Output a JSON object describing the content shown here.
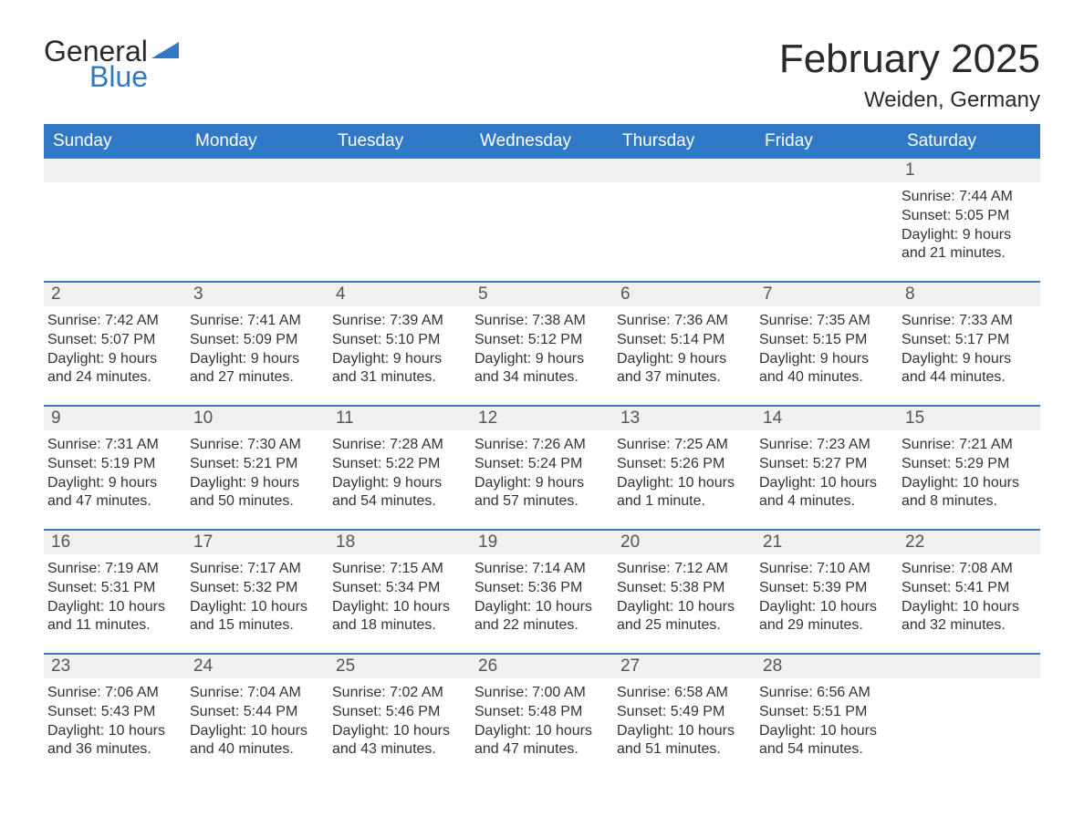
{
  "logo": {
    "word1": "General",
    "word2": "Blue"
  },
  "title": {
    "month": "February 2025",
    "location": "Weiden, Germany"
  },
  "calendar": {
    "weekdays": [
      "Sunday",
      "Monday",
      "Tuesday",
      "Wednesday",
      "Thursday",
      "Friday",
      "Saturday"
    ],
    "colors": {
      "header_bg": "#3178c6",
      "header_text": "#ffffff",
      "daynum_bg": "#f0f0f0",
      "daynum_text": "#555555",
      "body_text": "#333333",
      "row_rule": "#3178c6",
      "page_bg": "#ffffff"
    },
    "weeks": [
      [
        {
          "n": "",
          "empty": true
        },
        {
          "n": "",
          "empty": true
        },
        {
          "n": "",
          "empty": true
        },
        {
          "n": "",
          "empty": true
        },
        {
          "n": "",
          "empty": true
        },
        {
          "n": "",
          "empty": true
        },
        {
          "n": "1",
          "sunrise": "Sunrise: 7:44 AM",
          "sunset": "Sunset: 5:05 PM",
          "daylight": "Daylight: 9 hours and 21 minutes."
        }
      ],
      [
        {
          "n": "2",
          "sunrise": "Sunrise: 7:42 AM",
          "sunset": "Sunset: 5:07 PM",
          "daylight": "Daylight: 9 hours and 24 minutes."
        },
        {
          "n": "3",
          "sunrise": "Sunrise: 7:41 AM",
          "sunset": "Sunset: 5:09 PM",
          "daylight": "Daylight: 9 hours and 27 minutes."
        },
        {
          "n": "4",
          "sunrise": "Sunrise: 7:39 AM",
          "sunset": "Sunset: 5:10 PM",
          "daylight": "Daylight: ​9 hours and 31 minutes."
        },
        {
          "n": "5",
          "sunrise": "Sunrise: 7:38 AM",
          "sunset": "Sunset: 5:12 PM",
          "daylight": "Daylight: 9 hours and 34 minutes."
        },
        {
          "n": "6",
          "sunrise": "Sunrise: 7:36 AM",
          "sunset": "Sunset: 5:14 PM",
          "daylight": "Daylight: 9 hours and 37 minutes."
        },
        {
          "n": "7",
          "sunrise": "Sunrise: 7:35 AM",
          "sunset": "Sunset: 5:15 PM",
          "daylight": "Daylight: 9 hours and 40 minutes."
        },
        {
          "n": "8",
          "sunrise": "Sunrise: 7:33 AM",
          "sunset": "Sunset: 5:17 PM",
          "daylight": "Daylight: 9 hours and 44 minutes."
        }
      ],
      [
        {
          "n": "9",
          "sunrise": "Sunrise: 7:31 AM",
          "sunset": "Sunset: 5:19 PM",
          "daylight": "Daylight: 9 hours and 47 minutes."
        },
        {
          "n": "10",
          "sunrise": "Sunrise: 7:30 AM",
          "sunset": "Sunset: 5:21 PM",
          "daylight": "Daylight: 9 hours and 50 minutes."
        },
        {
          "n": "11",
          "sunrise": "Sunrise: 7:28 AM",
          "sunset": "Sunset: 5:22 PM",
          "daylight": "Daylight: 9 hours and 54 minutes."
        },
        {
          "n": "12",
          "sunrise": "Sunrise: 7:26 AM",
          "sunset": "Sunset: 5:24 PM",
          "daylight": "Daylight: 9 hours and 57 minutes."
        },
        {
          "n": "13",
          "sunrise": "Sunrise: 7:25 AM",
          "sunset": "Sunset: 5:26 PM",
          "daylight": "Daylight: 10 hours and 1 minute."
        },
        {
          "n": "14",
          "sunrise": "Sunrise: 7:23 AM",
          "sunset": "Sunset: 5:27 PM",
          "daylight": "Daylight: 10 hours and 4 minutes."
        },
        {
          "n": "15",
          "sunrise": "Sunrise: 7:21 AM",
          "sunset": "Sunset: 5:29 PM",
          "daylight": "Daylight: 10 hours and 8 minutes."
        }
      ],
      [
        {
          "n": "16",
          "sunrise": "Sunrise: 7:19 AM",
          "sunset": "Sunset: 5:31 PM",
          "daylight": "Daylight: 10 hours and 11 minutes."
        },
        {
          "n": "17",
          "sunrise": "Sunrise: 7:17 AM",
          "sunset": "Sunset: 5:32 PM",
          "daylight": "Daylight: 10 hours and 15 minutes."
        },
        {
          "n": "18",
          "sunrise": "Sunrise: 7:15 AM",
          "sunset": "Sunset: 5:34 PM",
          "daylight": "Daylight: 10 hours and 18 minutes."
        },
        {
          "n": "19",
          "sunrise": "Sunrise: 7:14 AM",
          "sunset": "Sunset: 5:36 PM",
          "daylight": "Daylight: 10 hours and 22 minutes."
        },
        {
          "n": "20",
          "sunrise": "Sunrise: 7:12 AM",
          "sunset": "Sunset: 5:38 PM",
          "daylight": "Daylight: 10 hours and 25 minutes."
        },
        {
          "n": "21",
          "sunrise": "Sunrise: 7:10 AM",
          "sunset": "Sunset: 5:39 PM",
          "daylight": "Daylight: 10 hours and 29 minutes."
        },
        {
          "n": "22",
          "sunrise": "Sunrise: 7:08 AM",
          "sunset": "Sunset: 5:41 PM",
          "daylight": "Daylight: 10 hours and 32 minutes."
        }
      ],
      [
        {
          "n": "23",
          "sunrise": "Sunrise: 7:06 AM",
          "sunset": "Sunset: 5:43 PM",
          "daylight": "Daylight: 10 hours and 36 minutes."
        },
        {
          "n": "24",
          "sunrise": "Sunrise: 7:04 AM",
          "sunset": "Sunset: 5:44 PM",
          "daylight": "Daylight: 10 hours and 40 minutes."
        },
        {
          "n": "25",
          "sunrise": "Sunrise: 7:02 AM",
          "sunset": "Sunset: 5:46 PM",
          "daylight": "Daylight: 10 hours and 43 minutes."
        },
        {
          "n": "26",
          "sunrise": "Sunrise: 7:00 AM",
          "sunset": "Sunset: 5:48 PM",
          "daylight": "Daylight: 10 hours and 47 minutes."
        },
        {
          "n": "27",
          "sunrise": "Sunrise: 6:58 AM",
          "sunset": "Sunset: 5:49 PM",
          "daylight": "Daylight: 10 hours and 51 minutes."
        },
        {
          "n": "28",
          "sunrise": "Sunrise: 6:56 AM",
          "sunset": "Sunset: 5:51 PM",
          "daylight": "Daylight: 10 hours and 54 minutes."
        },
        {
          "n": "",
          "empty": true
        }
      ]
    ]
  }
}
